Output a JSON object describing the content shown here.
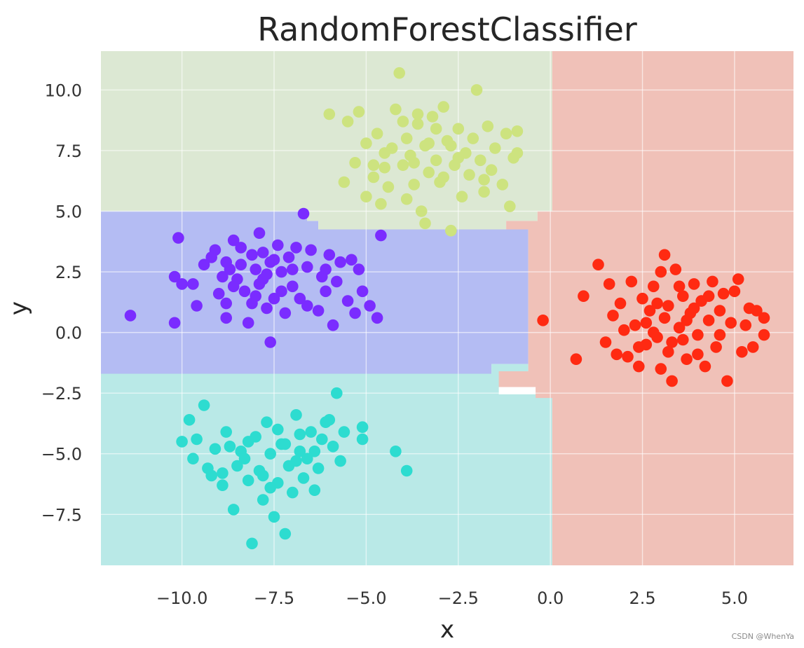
{
  "chart_data": {
    "type": "scatter",
    "title": "RandomForestClassifier",
    "xlabel": "x",
    "ylabel": "y",
    "xlim": [
      -12.2,
      6.6
    ],
    "ylim": [
      -9.6,
      11.6
    ],
    "xticks": [
      "−10.0",
      "−7.5",
      "−5.0",
      "−2.5",
      "0.0",
      "2.5",
      "5.0"
    ],
    "xtick_values": [
      -10,
      -7.5,
      -5,
      -2.5,
      0,
      2.5,
      5
    ],
    "yticks": [
      "−7.5",
      "−5.0",
      "−2.5",
      "0.0",
      "2.5",
      "5.0",
      "7.5",
      "10.0"
    ],
    "ytick_values": [
      -7.5,
      -5,
      -2.5,
      0,
      2.5,
      5,
      7.5,
      10
    ],
    "grid": true,
    "decision_regions": [
      {
        "class": "purple",
        "color": "#b4bcf3",
        "polygon": [
          [
            -12.2,
            5.0
          ],
          [
            -6.6,
            5.0
          ],
          [
            -6.6,
            4.6
          ],
          [
            -6.3,
            4.6
          ],
          [
            -6.3,
            4.25
          ],
          [
            -0.6,
            4.25
          ],
          [
            -0.6,
            -1.3
          ],
          [
            -1.6,
            -1.3
          ],
          [
            -1.6,
            -1.7
          ],
          [
            -12.2,
            -1.7
          ]
        ]
      },
      {
        "class": "cyan",
        "color": "#b9e9e7",
        "polygon": [
          [
            -12.2,
            -1.7
          ],
          [
            -1.6,
            -1.7
          ],
          [
            -1.6,
            -1.3
          ],
          [
            -0.6,
            -1.3
          ],
          [
            -0.6,
            -2.25
          ],
          [
            -1.4,
            -2.25
          ],
          [
            -1.4,
            -2.55
          ],
          [
            0.05,
            -2.55
          ],
          [
            0.05,
            -9.6
          ],
          [
            -12.2,
            -9.6
          ]
        ]
      },
      {
        "class": "lime",
        "color": "#dce8d3",
        "polygon": [
          [
            -12.2,
            11.6
          ],
          [
            0.05,
            11.6
          ],
          [
            0.05,
            5.0
          ],
          [
            -0.35,
            5.0
          ],
          [
            -0.35,
            4.6
          ],
          [
            -1.2,
            4.6
          ],
          [
            -1.2,
            4.25
          ],
          [
            -6.3,
            4.25
          ],
          [
            -6.3,
            4.6
          ],
          [
            -6.6,
            4.6
          ],
          [
            -6.6,
            5.0
          ],
          [
            -12.2,
            5.0
          ]
        ]
      },
      {
        "class": "red",
        "color": "#f0c1b8",
        "polygon": [
          [
            0.05,
            11.6
          ],
          [
            6.6,
            11.6
          ],
          [
            6.6,
            -9.6
          ],
          [
            0.05,
            -9.6
          ],
          [
            0.05,
            -2.7
          ],
          [
            -0.4,
            -2.7
          ],
          [
            -0.4,
            -2.25
          ],
          [
            -1.4,
            -2.25
          ],
          [
            -1.4,
            -1.6
          ],
          [
            -0.6,
            -1.6
          ],
          [
            -0.6,
            4.25
          ],
          [
            -1.2,
            4.25
          ],
          [
            -1.2,
            4.6
          ],
          [
            -0.35,
            4.6
          ],
          [
            -0.35,
            5.0
          ],
          [
            0.05,
            5.0
          ]
        ]
      }
    ],
    "series": [
      {
        "color": "#7a2cff",
        "points": [
          [
            -11.4,
            0.7
          ],
          [
            -10.2,
            0.4
          ],
          [
            -10.1,
            3.9
          ],
          [
            -10.2,
            2.3
          ],
          [
            -10.0,
            2.0
          ],
          [
            -9.7,
            2.0
          ],
          [
            -9.6,
            1.1
          ],
          [
            -9.4,
            2.8
          ],
          [
            -9.2,
            3.1
          ],
          [
            -9.1,
            3.4
          ],
          [
            -8.9,
            2.3
          ],
          [
            -8.8,
            2.9
          ],
          [
            -8.8,
            1.2
          ],
          [
            -8.8,
            0.6
          ],
          [
            -8.7,
            2.6
          ],
          [
            -8.6,
            3.8
          ],
          [
            -8.6,
            1.9
          ],
          [
            -8.4,
            2.8
          ],
          [
            -8.3,
            1.7
          ],
          [
            -8.2,
            0.4
          ],
          [
            -8.1,
            3.2
          ],
          [
            -8.0,
            2.6
          ],
          [
            -8.0,
            1.5
          ],
          [
            -7.9,
            4.1
          ],
          [
            -7.8,
            3.3
          ],
          [
            -7.8,
            2.2
          ],
          [
            -7.7,
            1.0
          ],
          [
            -7.6,
            2.9
          ],
          [
            -7.5,
            1.4
          ],
          [
            -7.4,
            3.6
          ],
          [
            -7.3,
            2.5
          ],
          [
            -7.2,
            0.8
          ],
          [
            -7.1,
            3.1
          ],
          [
            -7.0,
            1.9
          ],
          [
            -6.9,
            3.5
          ],
          [
            -6.8,
            1.4
          ],
          [
            -6.7,
            4.9
          ],
          [
            -6.6,
            2.7
          ],
          [
            -6.5,
            3.4
          ],
          [
            -6.3,
            0.9
          ],
          [
            -6.2,
            2.3
          ],
          [
            -6.1,
            1.7
          ],
          [
            -6.0,
            3.2
          ],
          [
            -5.9,
            0.3
          ],
          [
            -5.8,
            2.1
          ],
          [
            -5.7,
            2.9
          ],
          [
            -5.5,
            1.3
          ],
          [
            -5.4,
            3.0
          ],
          [
            -5.3,
            0.8
          ],
          [
            -5.2,
            2.6
          ],
          [
            -5.1,
            1.7
          ],
          [
            -4.9,
            1.1
          ],
          [
            -4.6,
            4.0
          ],
          [
            -4.7,
            0.6
          ],
          [
            -7.6,
            -0.4
          ],
          [
            -7.9,
            2.0
          ],
          [
            -8.1,
            1.2
          ],
          [
            -7.3,
            1.7
          ],
          [
            -8.5,
            2.2
          ],
          [
            -6.6,
            1.1
          ],
          [
            -7.5,
            3.0
          ],
          [
            -9.0,
            1.6
          ],
          [
            -7.0,
            2.6
          ],
          [
            -8.4,
            3.5
          ],
          [
            -6.1,
            2.6
          ],
          [
            -7.7,
            2.4
          ]
        ]
      },
      {
        "color": "#2ddcd0",
        "points": [
          [
            -10.0,
            -4.5
          ],
          [
            -9.8,
            -3.6
          ],
          [
            -9.7,
            -5.2
          ],
          [
            -9.6,
            -4.4
          ],
          [
            -9.4,
            -3.0
          ],
          [
            -9.2,
            -5.9
          ],
          [
            -9.1,
            -4.8
          ],
          [
            -8.9,
            -6.3
          ],
          [
            -8.8,
            -4.1
          ],
          [
            -8.6,
            -7.3
          ],
          [
            -8.5,
            -5.5
          ],
          [
            -8.4,
            -4.9
          ],
          [
            -8.2,
            -6.1
          ],
          [
            -8.1,
            -8.7
          ],
          [
            -8.0,
            -4.3
          ],
          [
            -7.9,
            -5.7
          ],
          [
            -7.8,
            -6.9
          ],
          [
            -7.7,
            -3.7
          ],
          [
            -7.6,
            -5.0
          ],
          [
            -7.5,
            -7.6
          ],
          [
            -7.4,
            -6.2
          ],
          [
            -7.3,
            -4.6
          ],
          [
            -7.2,
            -8.3
          ],
          [
            -7.1,
            -5.5
          ],
          [
            -7.0,
            -6.6
          ],
          [
            -6.9,
            -3.4
          ],
          [
            -6.8,
            -4.9
          ],
          [
            -6.7,
            -6.0
          ],
          [
            -6.6,
            -5.2
          ],
          [
            -6.5,
            -4.1
          ],
          [
            -6.4,
            -6.5
          ],
          [
            -6.3,
            -5.6
          ],
          [
            -6.2,
            -4.4
          ],
          [
            -6.1,
            -3.7
          ],
          [
            -5.9,
            -4.7
          ],
          [
            -5.8,
            -2.5
          ],
          [
            -5.7,
            -5.3
          ],
          [
            -5.6,
            -4.1
          ],
          [
            -5.1,
            -3.9
          ],
          [
            -5.1,
            -4.4
          ],
          [
            -4.2,
            -4.9
          ],
          [
            -3.9,
            -5.7
          ],
          [
            -6.8,
            -4.2
          ],
          [
            -7.4,
            -4.0
          ],
          [
            -8.3,
            -5.2
          ],
          [
            -7.8,
            -5.9
          ],
          [
            -6.9,
            -5.3
          ],
          [
            -7.2,
            -4.6
          ],
          [
            -8.7,
            -4.7
          ],
          [
            -9.3,
            -5.6
          ],
          [
            -8.9,
            -5.8
          ],
          [
            -6.4,
            -4.9
          ],
          [
            -6.0,
            -3.6
          ],
          [
            -7.6,
            -6.4
          ],
          [
            -8.2,
            -4.5
          ]
        ]
      },
      {
        "color": "#cde37f",
        "points": [
          [
            -6.0,
            9.0
          ],
          [
            -5.6,
            6.2
          ],
          [
            -5.5,
            8.7
          ],
          [
            -5.3,
            7.0
          ],
          [
            -5.2,
            9.1
          ],
          [
            -5.0,
            7.8
          ],
          [
            -5.0,
            5.6
          ],
          [
            -4.8,
            6.4
          ],
          [
            -4.7,
            8.2
          ],
          [
            -4.6,
            5.3
          ],
          [
            -4.5,
            7.4
          ],
          [
            -4.4,
            6.0
          ],
          [
            -4.2,
            9.2
          ],
          [
            -4.1,
            10.7
          ],
          [
            -4.0,
            6.9
          ],
          [
            -3.9,
            8.0
          ],
          [
            -3.8,
            7.3
          ],
          [
            -3.7,
            6.1
          ],
          [
            -3.6,
            8.6
          ],
          [
            -3.5,
            5.0
          ],
          [
            -3.4,
            7.7
          ],
          [
            -3.3,
            6.6
          ],
          [
            -3.2,
            8.9
          ],
          [
            -3.1,
            7.1
          ],
          [
            -3.0,
            6.2
          ],
          [
            -2.9,
            9.3
          ],
          [
            -2.8,
            7.9
          ],
          [
            -2.7,
            4.2
          ],
          [
            -2.6,
            6.9
          ],
          [
            -2.5,
            8.4
          ],
          [
            -2.4,
            5.6
          ],
          [
            -2.3,
            7.4
          ],
          [
            -2.2,
            6.5
          ],
          [
            -2.1,
            8.0
          ],
          [
            -2.0,
            10.0
          ],
          [
            -1.9,
            7.1
          ],
          [
            -1.8,
            5.8
          ],
          [
            -1.7,
            8.5
          ],
          [
            -1.6,
            6.7
          ],
          [
            -1.5,
            7.6
          ],
          [
            -1.3,
            6.1
          ],
          [
            -1.2,
            8.2
          ],
          [
            -1.1,
            5.2
          ],
          [
            -1.0,
            7.2
          ],
          [
            -0.9,
            8.3
          ],
          [
            -0.9,
            7.4
          ],
          [
            -3.4,
            4.5
          ],
          [
            -4.8,
            6.9
          ],
          [
            -3.9,
            5.5
          ],
          [
            -2.7,
            7.7
          ],
          [
            -3.1,
            8.4
          ],
          [
            -4.3,
            7.6
          ],
          [
            -3.7,
            7.0
          ],
          [
            -2.9,
            6.4
          ],
          [
            -4.0,
            8.7
          ],
          [
            -3.3,
            7.8
          ],
          [
            -2.5,
            7.2
          ],
          [
            -4.5,
            6.8
          ],
          [
            -3.6,
            9.0
          ],
          [
            -1.8,
            6.3
          ]
        ]
      },
      {
        "color": "#ff2a12",
        "points": [
          [
            -0.2,
            0.5
          ],
          [
            0.7,
            -1.1
          ],
          [
            0.9,
            1.5
          ],
          [
            1.3,
            2.8
          ],
          [
            1.5,
            -0.4
          ],
          [
            1.6,
            2.0
          ],
          [
            1.7,
            0.7
          ],
          [
            1.8,
            -0.9
          ],
          [
            1.9,
            1.2
          ],
          [
            2.0,
            0.1
          ],
          [
            2.1,
            -1.0
          ],
          [
            2.2,
            2.1
          ],
          [
            2.3,
            0.3
          ],
          [
            2.4,
            -1.4
          ],
          [
            2.5,
            1.4
          ],
          [
            2.6,
            -0.5
          ],
          [
            2.7,
            0.9
          ],
          [
            2.8,
            1.9
          ],
          [
            2.9,
            -0.2
          ],
          [
            3.0,
            2.5
          ],
          [
            3.0,
            -1.5
          ],
          [
            3.1,
            3.2
          ],
          [
            3.1,
            0.6
          ],
          [
            3.2,
            1.1
          ],
          [
            3.3,
            -2.0
          ],
          [
            3.3,
            -0.4
          ],
          [
            3.4,
            2.6
          ],
          [
            3.5,
            0.2
          ],
          [
            3.6,
            1.5
          ],
          [
            3.7,
            -1.1
          ],
          [
            3.8,
            0.8
          ],
          [
            3.9,
            2.0
          ],
          [
            4.0,
            -0.1
          ],
          [
            4.1,
            1.3
          ],
          [
            4.2,
            -1.4
          ],
          [
            4.3,
            0.5
          ],
          [
            4.4,
            2.1
          ],
          [
            4.5,
            -0.6
          ],
          [
            4.6,
            0.9
          ],
          [
            4.7,
            1.6
          ],
          [
            4.8,
            -2.0
          ],
          [
            4.9,
            0.4
          ],
          [
            5.0,
            1.7
          ],
          [
            5.1,
            2.2
          ],
          [
            5.2,
            -0.8
          ],
          [
            5.3,
            0.3
          ],
          [
            5.4,
            1.0
          ],
          [
            5.5,
            -0.6
          ],
          [
            5.6,
            0.9
          ],
          [
            5.8,
            -0.1
          ],
          [
            5.8,
            0.6
          ],
          [
            2.6,
            0.4
          ],
          [
            3.5,
            1.9
          ],
          [
            4.0,
            -0.9
          ],
          [
            2.9,
            1.2
          ],
          [
            3.7,
            0.5
          ],
          [
            4.3,
            1.5
          ],
          [
            2.4,
            -0.6
          ],
          [
            3.2,
            -0.8
          ],
          [
            4.6,
            -0.1
          ],
          [
            3.9,
            1.0
          ],
          [
            2.8,
            0.0
          ],
          [
            3.6,
            -0.3
          ]
        ]
      }
    ],
    "colors": {
      "grid": "#ffffff",
      "text": "#333333"
    }
  },
  "watermark": "CSDN @WhenYa"
}
